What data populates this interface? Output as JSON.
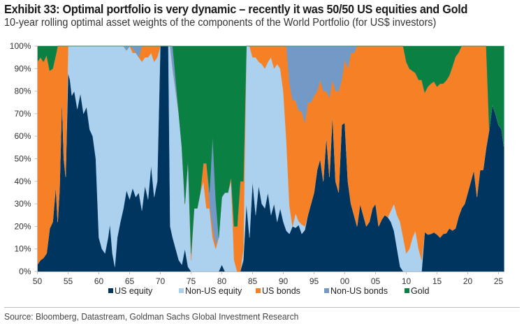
{
  "header": {
    "title": "Exhibit 33: Optimal portfolio is very dynamic – recently it was 50/50 US equities and Gold",
    "subtitle": "10-year rolling optimal asset weights of the components of the World Portfolio (for US$ investors)"
  },
  "footer": {
    "source": "Source: Bloomberg, Datastream, Goldman Sachs Global Investment Research"
  },
  "chart_data": {
    "type": "area",
    "stacked": true,
    "title": "Exhibit 33: Optimal portfolio is very dynamic – recently it was 50/50 US equities and Gold",
    "subtitle": "10-year rolling optimal asset weights of the components of the World Portfolio (for US$ investors)",
    "xlabel": "",
    "ylabel": "",
    "xlim": [
      1950,
      2025.9
    ],
    "ylim": [
      0,
      100
    ],
    "y_tick_labels": [
      "0%",
      "10%",
      "20%",
      "30%",
      "40%",
      "50%",
      "60%",
      "70%",
      "80%",
      "90%",
      "100%"
    ],
    "y_ticks": [
      0,
      10,
      20,
      30,
      40,
      50,
      60,
      70,
      80,
      90,
      100
    ],
    "x_ticks": [
      1950,
      1955,
      1960,
      1965,
      1970,
      1975,
      1980,
      1985,
      1990,
      1995,
      2000,
      2005,
      2010,
      2015,
      2020,
      2025
    ],
    "x_tick_labels": [
      "50",
      "55",
      "60",
      "65",
      "70",
      "75",
      "80",
      "85",
      "90",
      "95",
      "00",
      "05",
      "10",
      "15",
      "20",
      "25"
    ],
    "grid": false,
    "legend_position": "bottom",
    "x": [
      1950.0,
      1950.5,
      1951.0,
      1951.5,
      1952.0,
      1952.5,
      1953.0,
      1953.3,
      1953.6,
      1954.0,
      1954.3,
      1954.6,
      1955.0,
      1955.3,
      1955.6,
      1956.0,
      1956.5,
      1957.0,
      1957.5,
      1958.0,
      1958.5,
      1959.0,
      1959.5,
      1960.0,
      1960.5,
      1961.0,
      1961.5,
      1961.8,
      1962.2,
      1962.6,
      1963.0,
      1963.5,
      1964.0,
      1964.5,
      1965.0,
      1965.5,
      1966.0,
      1966.5,
      1967.0,
      1967.5,
      1968.0,
      1968.5,
      1969.0,
      1969.5,
      1970.0,
      1970.4,
      1970.6,
      1971.0,
      1971.3,
      1971.6,
      1972.0,
      1972.5,
      1973.0,
      1973.5,
      1974.0,
      1974.5,
      1975.0,
      1975.5,
      1976.0,
      1976.5,
      1977.0,
      1977.5,
      1978.0,
      1978.5,
      1979.0,
      1979.5,
      1980.0,
      1980.5,
      1981.0,
      1981.5,
      1982.0,
      1982.5,
      1983.0,
      1983.5,
      1984.0,
      1984.5,
      1985.0,
      1985.5,
      1986.0,
      1986.5,
      1987.0,
      1987.5,
      1988.0,
      1988.5,
      1989.0,
      1989.5,
      1990.0,
      1990.5,
      1991.0,
      1991.5,
      1992.0,
      1992.5,
      1993.0,
      1993.5,
      1994.0,
      1994.5,
      1995.0,
      1995.5,
      1996.0,
      1996.5,
      1997.0,
      1997.5,
      1998.0,
      1998.5,
      1999.0,
      1999.5,
      2000.0,
      2000.5,
      2001.0,
      2001.5,
      2002.0,
      2002.5,
      2003.0,
      2003.5,
      2004.0,
      2004.5,
      2005.0,
      2005.5,
      2006.0,
      2006.5,
      2007.0,
      2007.5,
      2008.0,
      2008.5,
      2009.0,
      2009.5,
      2010.0,
      2010.5,
      2011.0,
      2011.5,
      2012.0,
      2012.5,
      2013.0,
      2013.5,
      2014.0,
      2014.5,
      2015.0,
      2015.5,
      2016.0,
      2016.5,
      2017.0,
      2017.5,
      2018.0,
      2018.5,
      2019.0,
      2019.5,
      2020.0,
      2020.5,
      2021.0,
      2021.5,
      2022.0,
      2022.5,
      2023.0,
      2023.5,
      2024.0,
      2024.5,
      2025.0,
      2025.5,
      2025.9
    ],
    "series": [
      {
        "name": "US equity",
        "color": "#003560",
        "values": [
          3,
          5,
          6,
          8,
          19,
          22,
          38,
          22,
          36,
          77,
          50,
          42,
          88,
          85,
          78,
          80,
          72,
          79,
          70,
          73,
          63,
          60,
          50,
          15,
          10,
          8,
          15,
          21,
          8,
          2,
          15,
          22,
          28,
          36,
          32,
          37,
          33,
          35,
          27,
          38,
          32,
          47,
          33,
          40,
          100,
          100,
          100,
          100,
          100,
          20,
          15,
          10,
          5,
          3,
          10,
          2,
          0,
          0,
          0,
          0,
          0,
          0,
          0,
          0,
          0,
          0,
          3,
          0,
          0,
          0,
          0,
          0,
          0,
          5,
          30,
          15,
          40,
          25,
          38,
          30,
          28,
          35,
          25,
          30,
          22,
          28,
          22,
          18,
          20,
          25,
          24,
          26,
          20,
          22,
          25,
          30,
          35,
          45,
          50,
          40,
          60,
          42,
          70,
          40,
          35,
          65,
          66,
          40,
          30,
          25,
          20,
          30,
          25,
          20,
          22,
          28,
          30,
          20,
          23,
          25,
          24,
          22,
          18,
          10,
          2,
          0,
          0,
          0,
          0,
          0,
          0,
          0,
          22,
          20,
          20,
          21,
          20,
          18,
          20,
          20,
          22,
          20,
          20,
          25,
          28,
          30,
          35,
          40,
          45,
          33,
          45,
          45,
          55,
          63,
          74,
          70,
          65,
          63,
          55,
          48,
          48
        ]
      },
      {
        "name": "Non-US equity",
        "color": "#acd1ee",
        "values": [
          0,
          0,
          0,
          0,
          0,
          0,
          0,
          0,
          0,
          0,
          0,
          0,
          12,
          15,
          22,
          20,
          28,
          21,
          30,
          27,
          37,
          40,
          50,
          85,
          90,
          92,
          85,
          79,
          92,
          98,
          85,
          78,
          72,
          62,
          68,
          60,
          64,
          60,
          66,
          57,
          63,
          50,
          60,
          55,
          0,
          0,
          0,
          0,
          0,
          80,
          75,
          70,
          65,
          52,
          20,
          48,
          5,
          28,
          28,
          35,
          40,
          28,
          28,
          15,
          10,
          15,
          30,
          35,
          35,
          40,
          5,
          0,
          0,
          5,
          70,
          85,
          55,
          70,
          55,
          62,
          62,
          58,
          70,
          60,
          70,
          62,
          58,
          40,
          15,
          0,
          8,
          2,
          5,
          2,
          0,
          0,
          0,
          0,
          0,
          0,
          0,
          0,
          0,
          0,
          0,
          0,
          0,
          0,
          0,
          0,
          0,
          0,
          0,
          0,
          0,
          0,
          0,
          0,
          0,
          0,
          0,
          5,
          12,
          15,
          20,
          15,
          8,
          10,
          15,
          18,
          10,
          5,
          0,
          0,
          0,
          0,
          0,
          0,
          0,
          0,
          0,
          0,
          0,
          0,
          0,
          0,
          0,
          0,
          0,
          0,
          0,
          0,
          0,
          0,
          0,
          0,
          0,
          0,
          0,
          0,
          0,
          0,
          0
        ]
      },
      {
        "name": "US bonds",
        "color": "#f58025",
        "values": [
          90,
          90,
          87,
          88,
          70,
          68,
          58,
          78,
          64,
          23,
          50,
          58,
          0,
          0,
          0,
          0,
          0,
          0,
          0,
          0,
          0,
          0,
          0,
          0,
          0,
          0,
          0,
          0,
          0,
          0,
          0,
          0,
          0,
          0,
          0,
          2,
          0,
          0,
          7,
          5,
          5,
          3,
          7,
          5,
          0,
          0,
          0,
          0,
          0,
          0,
          0,
          0,
          0,
          0,
          0,
          0,
          3,
          0,
          0,
          0,
          8,
          20,
          2,
          5,
          2,
          0,
          0,
          0,
          0,
          2,
          15,
          20,
          40,
          30,
          0,
          0,
          5,
          5,
          7,
          8,
          10,
          7,
          5,
          10,
          8,
          10,
          20,
          42,
          65,
          70,
          62,
          62,
          60,
          55,
          50,
          45,
          43,
          35,
          35,
          40,
          20,
          35,
          15,
          40,
          45,
          20,
          28,
          50,
          67,
          72,
          80,
          70,
          75,
          80,
          78,
          72,
          70,
          80,
          77,
          75,
          76,
          73,
          70,
          75,
          78,
          85,
          85,
          80,
          74,
          70,
          75,
          80,
          78,
          80,
          80,
          81,
          80,
          82,
          80,
          80,
          78,
          80,
          80,
          75,
          72,
          70,
          65,
          60,
          55,
          67,
          55,
          55,
          45,
          0,
          0,
          0,
          0,
          0,
          0,
          0,
          0
        ]
      },
      {
        "name": "Non-US bonds",
        "color": "#7399c6",
        "values": [
          0,
          0,
          0,
          0,
          0,
          0,
          0,
          0,
          0,
          0,
          0,
          0,
          0,
          0,
          0,
          0,
          0,
          0,
          0,
          0,
          0,
          0,
          0,
          0,
          0,
          0,
          0,
          0,
          0,
          0,
          0,
          0,
          0,
          2,
          0,
          1,
          3,
          5,
          0,
          0,
          0,
          0,
          0,
          0,
          0,
          0,
          0,
          0,
          0,
          0,
          10,
          5,
          0,
          0,
          0,
          0,
          0,
          0,
          0,
          0,
          0,
          0,
          5,
          40,
          20,
          0,
          0,
          0,
          0,
          0,
          0,
          0,
          0,
          0,
          0,
          0,
          0,
          0,
          0,
          0,
          0,
          0,
          0,
          0,
          0,
          0,
          0,
          0,
          20,
          30,
          30,
          36,
          35,
          41,
          25,
          25,
          22,
          20,
          15,
          20,
          20,
          23,
          15,
          20,
          20,
          15,
          6,
          10,
          3,
          3,
          0,
          0,
          0,
          0,
          0,
          0,
          0,
          0,
          0,
          0,
          0,
          0,
          0,
          0,
          0,
          0,
          0,
          0,
          0,
          0,
          0,
          0,
          0,
          0,
          0,
          0,
          0,
          0,
          0,
          0,
          0,
          0,
          0,
          0,
          0,
          0,
          0,
          0,
          0,
          0,
          0,
          0,
          0,
          0,
          0,
          0,
          0,
          0,
          0,
          0,
          0,
          0,
          0
        ]
      },
      {
        "name": "Gold",
        "color": "#0b8043",
        "values": [
          7,
          5,
          7,
          4,
          11,
          10,
          4,
          0,
          0,
          0,
          0,
          0,
          0,
          0,
          0,
          0,
          0,
          0,
          0,
          0,
          0,
          0,
          0,
          0,
          0,
          0,
          0,
          0,
          0,
          0,
          0,
          0,
          0,
          0,
          0,
          0,
          0,
          0,
          0,
          0,
          0,
          0,
          0,
          0,
          0,
          0,
          0,
          0,
          0,
          0,
          0,
          15,
          30,
          45,
          70,
          50,
          92,
          72,
          72,
          65,
          52,
          52,
          65,
          40,
          68,
          85,
          67,
          65,
          65,
          58,
          80,
          80,
          60,
          60,
          0,
          0,
          0,
          0,
          0,
          0,
          0,
          0,
          0,
          0,
          0,
          0,
          0,
          0,
          0,
          0,
          0,
          0,
          0,
          0,
          0,
          0,
          0,
          0,
          0,
          0,
          0,
          0,
          0,
          0,
          0,
          0,
          0,
          0,
          0,
          0,
          0,
          0,
          0,
          0,
          0,
          0,
          0,
          0,
          0,
          0,
          0,
          0,
          0,
          0,
          0,
          0,
          7,
          10,
          11,
          12,
          15,
          15,
          26,
          22,
          20,
          19,
          22,
          20,
          20,
          18,
          15,
          10,
          5,
          3,
          0,
          0,
          0,
          0,
          0,
          0,
          0,
          0,
          0,
          37,
          26,
          30,
          35,
          37,
          45,
          52,
          52
        ]
      }
    ]
  }
}
